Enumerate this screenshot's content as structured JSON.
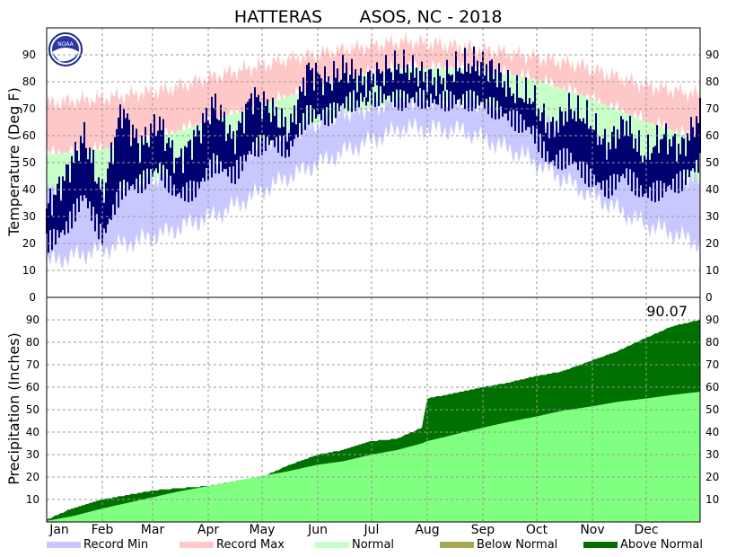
{
  "chart_data": {
    "type": "area",
    "title_station": "HATTERAS",
    "title_rest": "ASOS, NC - 2018",
    "months": [
      "Jan",
      "Feb",
      "Mar",
      "Apr",
      "May",
      "Jun",
      "Jul",
      "Aug",
      "Sep",
      "Oct",
      "Nov",
      "Dec"
    ],
    "temperature": {
      "ylabel": "Temperature (Deg F)",
      "ylim": [
        0,
        100
      ],
      "yticks": [
        "0",
        "10",
        "20",
        "30",
        "40",
        "50",
        "60",
        "70",
        "80",
        "90"
      ],
      "normal_high_by_month": [
        53,
        55,
        60,
        67,
        74,
        81,
        85,
        85,
        82,
        75,
        66,
        58
      ],
      "normal_low_by_month": [
        39,
        40,
        45,
        52,
        60,
        68,
        73,
        73,
        69,
        60,
        50,
        43
      ],
      "record_max_by_month": [
        72,
        74,
        77,
        83,
        88,
        92,
        95,
        93,
        90,
        86,
        79,
        75
      ],
      "record_min_by_month": [
        13,
        18,
        24,
        32,
        44,
        54,
        63,
        62,
        53,
        40,
        28,
        20
      ],
      "observed_high_sample": [
        33,
        45,
        60,
        38,
        70,
        56,
        65,
        50,
        60,
        72,
        58,
        75,
        70,
        62,
        85,
        80,
        85,
        80,
        84,
        86,
        83,
        80,
        85,
        87,
        84,
        76,
        74,
        62,
        70,
        66,
        56,
        65,
        52,
        60,
        55,
        68
      ],
      "observed_low_sample": [
        20,
        25,
        38,
        22,
        40,
        42,
        48,
        38,
        40,
        50,
        45,
        55,
        58,
        55,
        68,
        67,
        72,
        74,
        75,
        73,
        74,
        73,
        73,
        73,
        70,
        66,
        62,
        50,
        52,
        45,
        40,
        46,
        38,
        40,
        43,
        50
      ]
    },
    "precipitation": {
      "ylabel": "Precipitation (Inches)",
      "ylim": [
        0,
        100
      ],
      "yticks": [
        "10",
        "20",
        "30",
        "40",
        "50",
        "60",
        "70",
        "80",
        "90"
      ],
      "total_label": "90.07",
      "days": [
        1,
        15,
        32,
        46,
        60,
        74,
        91,
        105,
        121,
        135,
        152,
        166,
        182,
        196,
        210,
        213,
        226,
        244,
        258,
        274,
        288,
        305,
        319,
        335,
        349,
        365
      ],
      "actual_cumulative": [
        1,
        6,
        10,
        12,
        14,
        15,
        16,
        18,
        20,
        25,
        30,
        32,
        36,
        37,
        42,
        55,
        57,
        60,
        62,
        65,
        67,
        72,
        76,
        82,
        87,
        90.07
      ],
      "normal_cumulative": [
        0.5,
        2.5,
        6,
        8.5,
        11,
        13.5,
        16,
        18,
        20.5,
        22.5,
        25.5,
        27,
        30,
        32,
        35,
        36,
        38.5,
        42,
        44.5,
        47,
        49.5,
        51.5,
        53.5,
        55,
        56.5,
        58
      ]
    },
    "legend": [
      {
        "label": "Record Min",
        "color": "#c8c8ff"
      },
      {
        "label": "Record Max",
        "color": "#ffc8c8"
      },
      {
        "label": "Normal",
        "color": "#c8ffc8"
      },
      {
        "label": "Below Normal",
        "color": "#a8a850"
      },
      {
        "label": "Above Normal",
        "color": "#007000"
      }
    ],
    "colors": {
      "observed": "#000070",
      "normal_precip": "#80ff80",
      "above_normal": "#007000",
      "grid": "#999999"
    }
  }
}
